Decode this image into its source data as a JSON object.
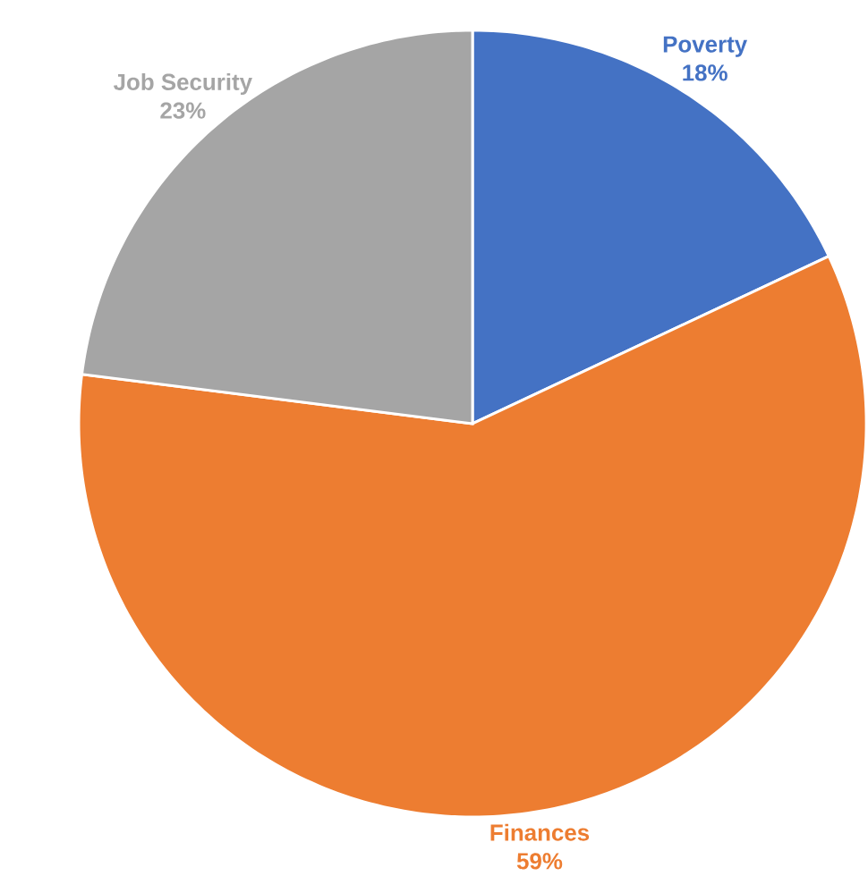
{
  "chart_data": {
    "type": "pie",
    "categories": [
      "Poverty",
      "Finances",
      "Job Security"
    ],
    "values": [
      18,
      59,
      23
    ],
    "colors": [
      "#4472c4",
      "#ed7d31",
      "#a5a5a5"
    ],
    "value_labels": [
      "18%",
      "59%",
      "23%"
    ]
  }
}
